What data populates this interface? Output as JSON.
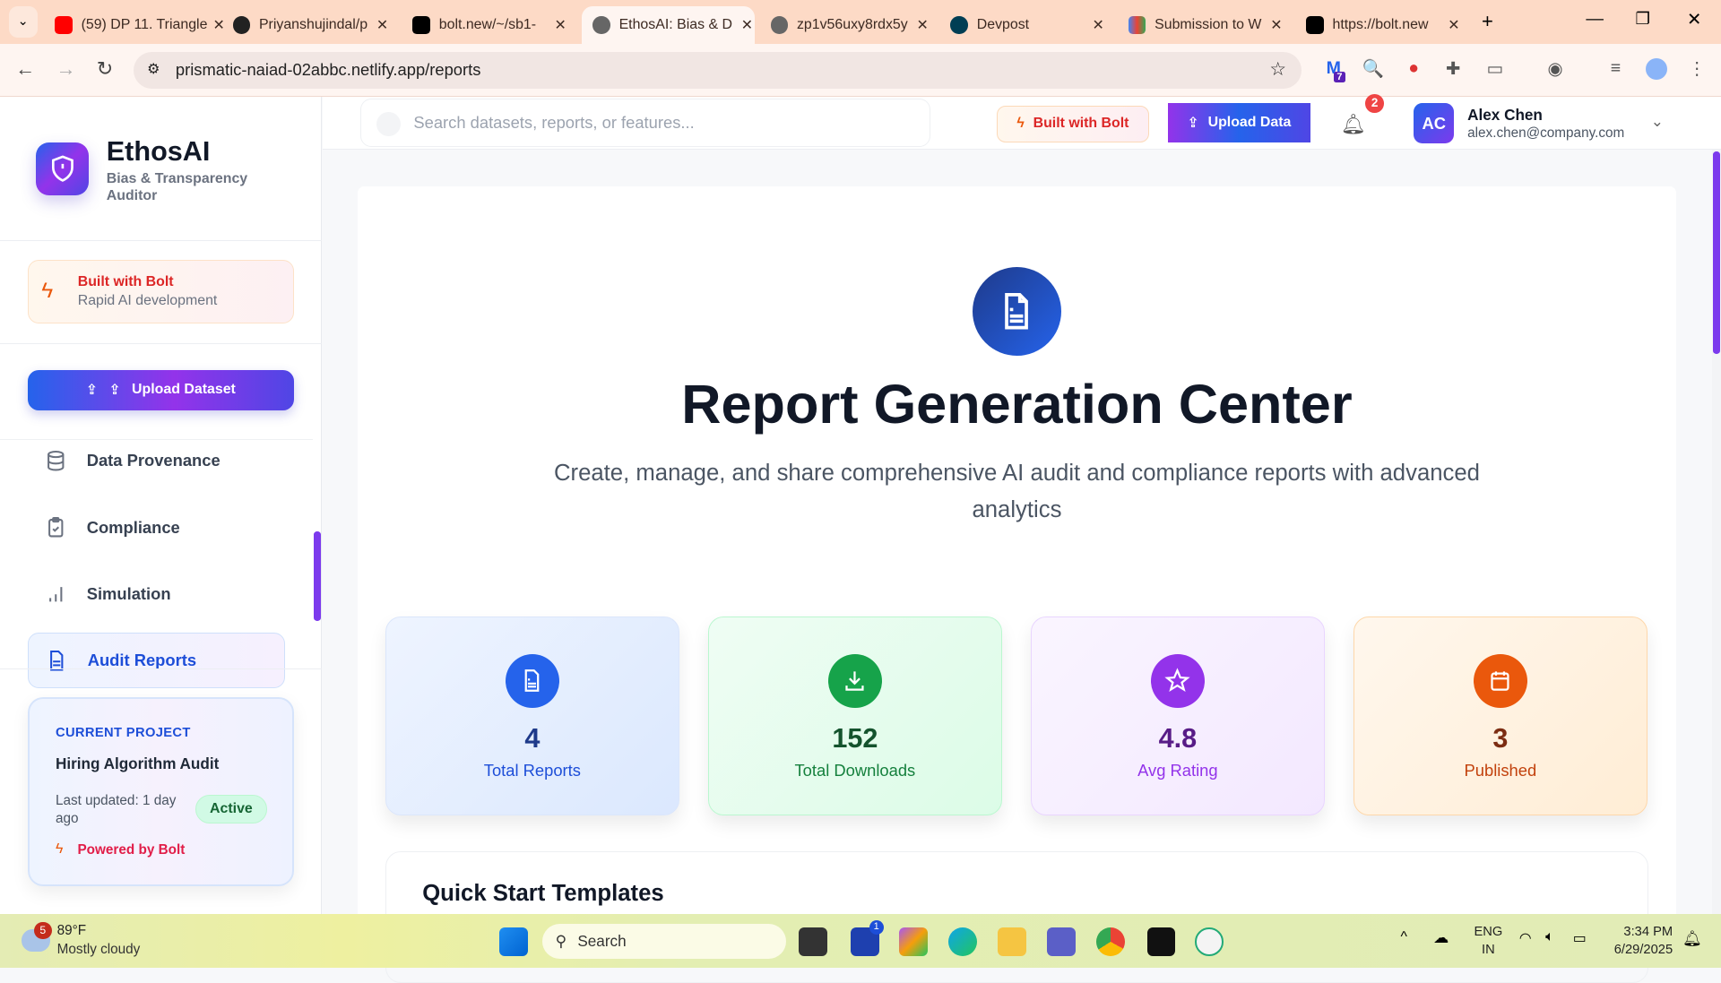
{
  "browser": {
    "tabs": [
      {
        "title": "(59) DP 11. Triangle",
        "icon": "youtube-icon"
      },
      {
        "title": "Priyanshujindal/p",
        "icon": "github-icon"
      },
      {
        "title": "bolt.new/~/sb1-",
        "icon": "bolt-icon"
      },
      {
        "title": "EthosAI: Bias & D",
        "icon": "globe-icon",
        "active": true
      },
      {
        "title": "zp1v56uxy8rdx5y",
        "icon": "globe-icon"
      },
      {
        "title": "Devpost",
        "icon": "devpost-icon"
      },
      {
        "title": "Submission to W",
        "icon": "gmail-icon"
      },
      {
        "title": "https://bolt.new",
        "icon": "bolt-icon"
      }
    ],
    "url": "prismatic-naiad-02abbc.netlify.app/reports",
    "extension_badge": "7"
  },
  "sidebar": {
    "brand": "EthosAI",
    "tagline": "Bias & Transparency Auditor",
    "bolt_card": {
      "title": "Built with Bolt",
      "subtitle": "Rapid AI development"
    },
    "upload_label": "Upload Dataset",
    "items": [
      {
        "label": "Data Provenance",
        "icon": "database-icon"
      },
      {
        "label": "Compliance",
        "icon": "clipboard-check-icon"
      },
      {
        "label": "Simulation",
        "icon": "bar-chart-icon"
      },
      {
        "label": "Audit Reports",
        "icon": "file-text-icon",
        "active": true
      }
    ],
    "project": {
      "heading": "CURRENT PROJECT",
      "name": "Hiring Algorithm Audit",
      "updated": "Last updated: 1 day ago",
      "status": "Active",
      "powered": "Powered by Bolt"
    }
  },
  "header": {
    "search_placeholder": "Search datasets, reports, or features...",
    "bolt_label": "Built with Bolt",
    "upload_label": "Upload Data",
    "notifications": "2",
    "user": {
      "initials": "AC",
      "name": "Alex Chen",
      "email": "alex.chen@company.com"
    }
  },
  "main": {
    "title": "Report Generation Center",
    "subtitle": "Create, manage, and share comprehensive AI audit and compliance reports with advanced analytics",
    "stats": [
      {
        "value": "4",
        "label": "Total Reports",
        "icon": "file-text-icon",
        "color": "#2563eb"
      },
      {
        "value": "152",
        "label": "Total Downloads",
        "icon": "download-icon",
        "color": "#16a34a"
      },
      {
        "value": "4.8",
        "label": "Avg Rating",
        "icon": "star-icon",
        "color": "#9333ea"
      },
      {
        "value": "3",
        "label": "Published",
        "icon": "calendar-icon",
        "color": "#ea580c"
      }
    ],
    "section_title": "Quick Start Templates"
  },
  "taskbar": {
    "weather": {
      "temp": "89°F",
      "desc": "Mostly cloudy",
      "badge": "5"
    },
    "search": "Search",
    "lang": "ENG",
    "region": "IN",
    "time": "3:34 PM",
    "date": "6/29/2025",
    "store_badge": "1"
  }
}
